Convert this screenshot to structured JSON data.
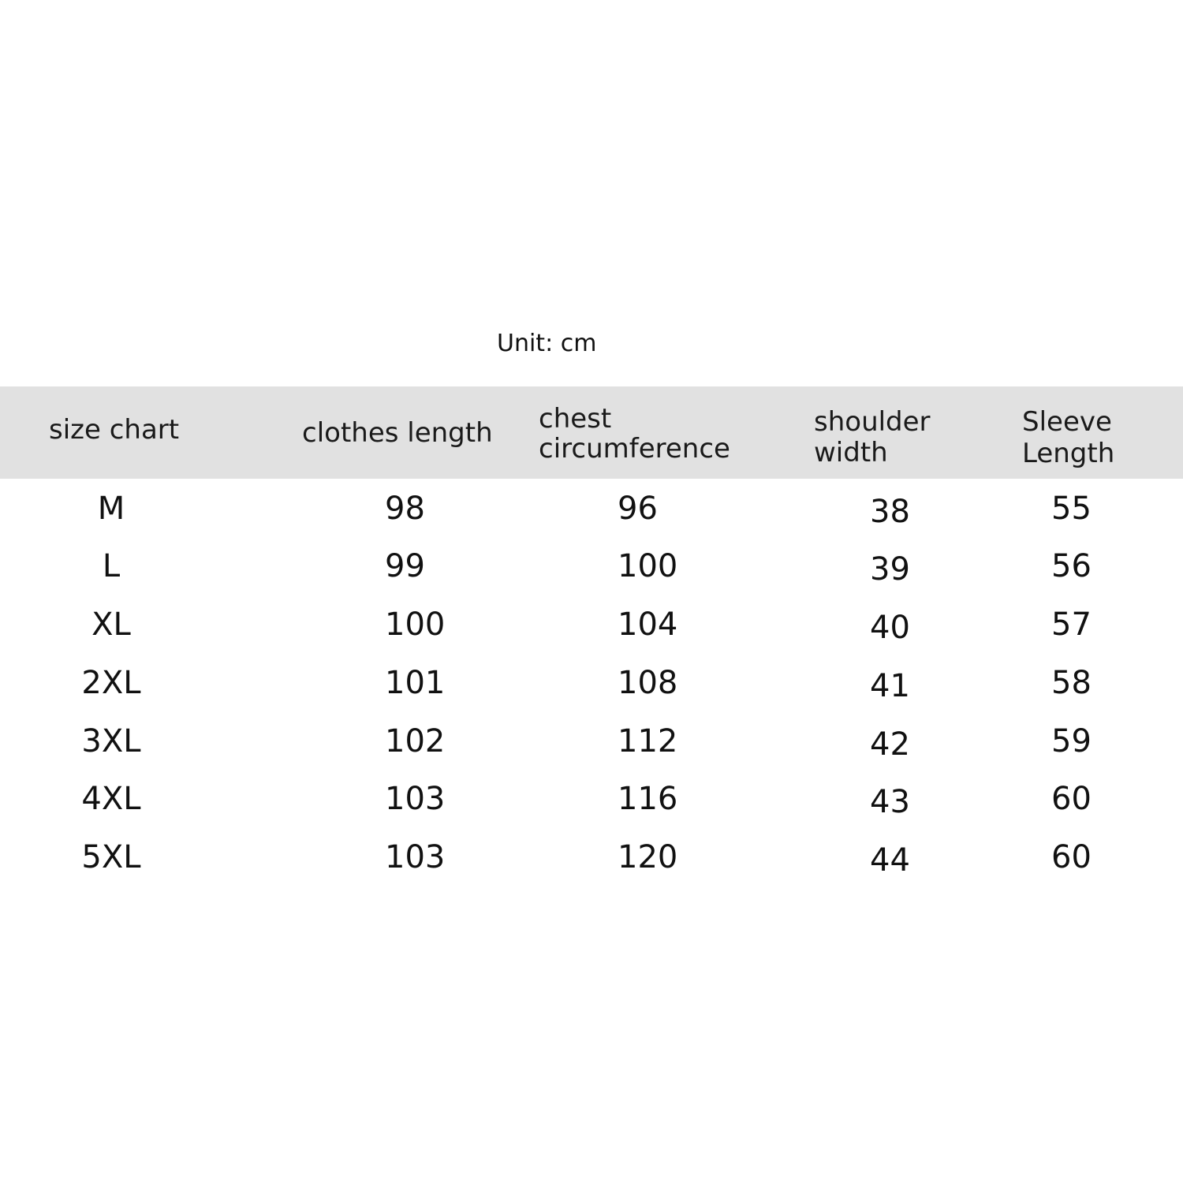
{
  "unit_label": "Unit: cm",
  "table": {
    "headers": [
      [
        "size chart"
      ],
      [
        "clothes length"
      ],
      [
        "chest",
        "circumference"
      ],
      [
        "shoulder",
        "width"
      ],
      [
        "Sleeve",
        "Length"
      ]
    ],
    "rows": [
      [
        "M",
        "98",
        "96",
        "38",
        "55"
      ],
      [
        "L",
        "99",
        "100",
        "39",
        "56"
      ],
      [
        "XL",
        "100",
        "104",
        "40",
        "57"
      ],
      [
        "2XL",
        "101",
        "108",
        "41",
        "58"
      ],
      [
        "3XL",
        "102",
        "112",
        "42",
        "59"
      ],
      [
        "4XL",
        "103",
        "116",
        "43",
        "60"
      ],
      [
        "5XL",
        "103",
        "120",
        "44",
        "60"
      ]
    ]
  }
}
